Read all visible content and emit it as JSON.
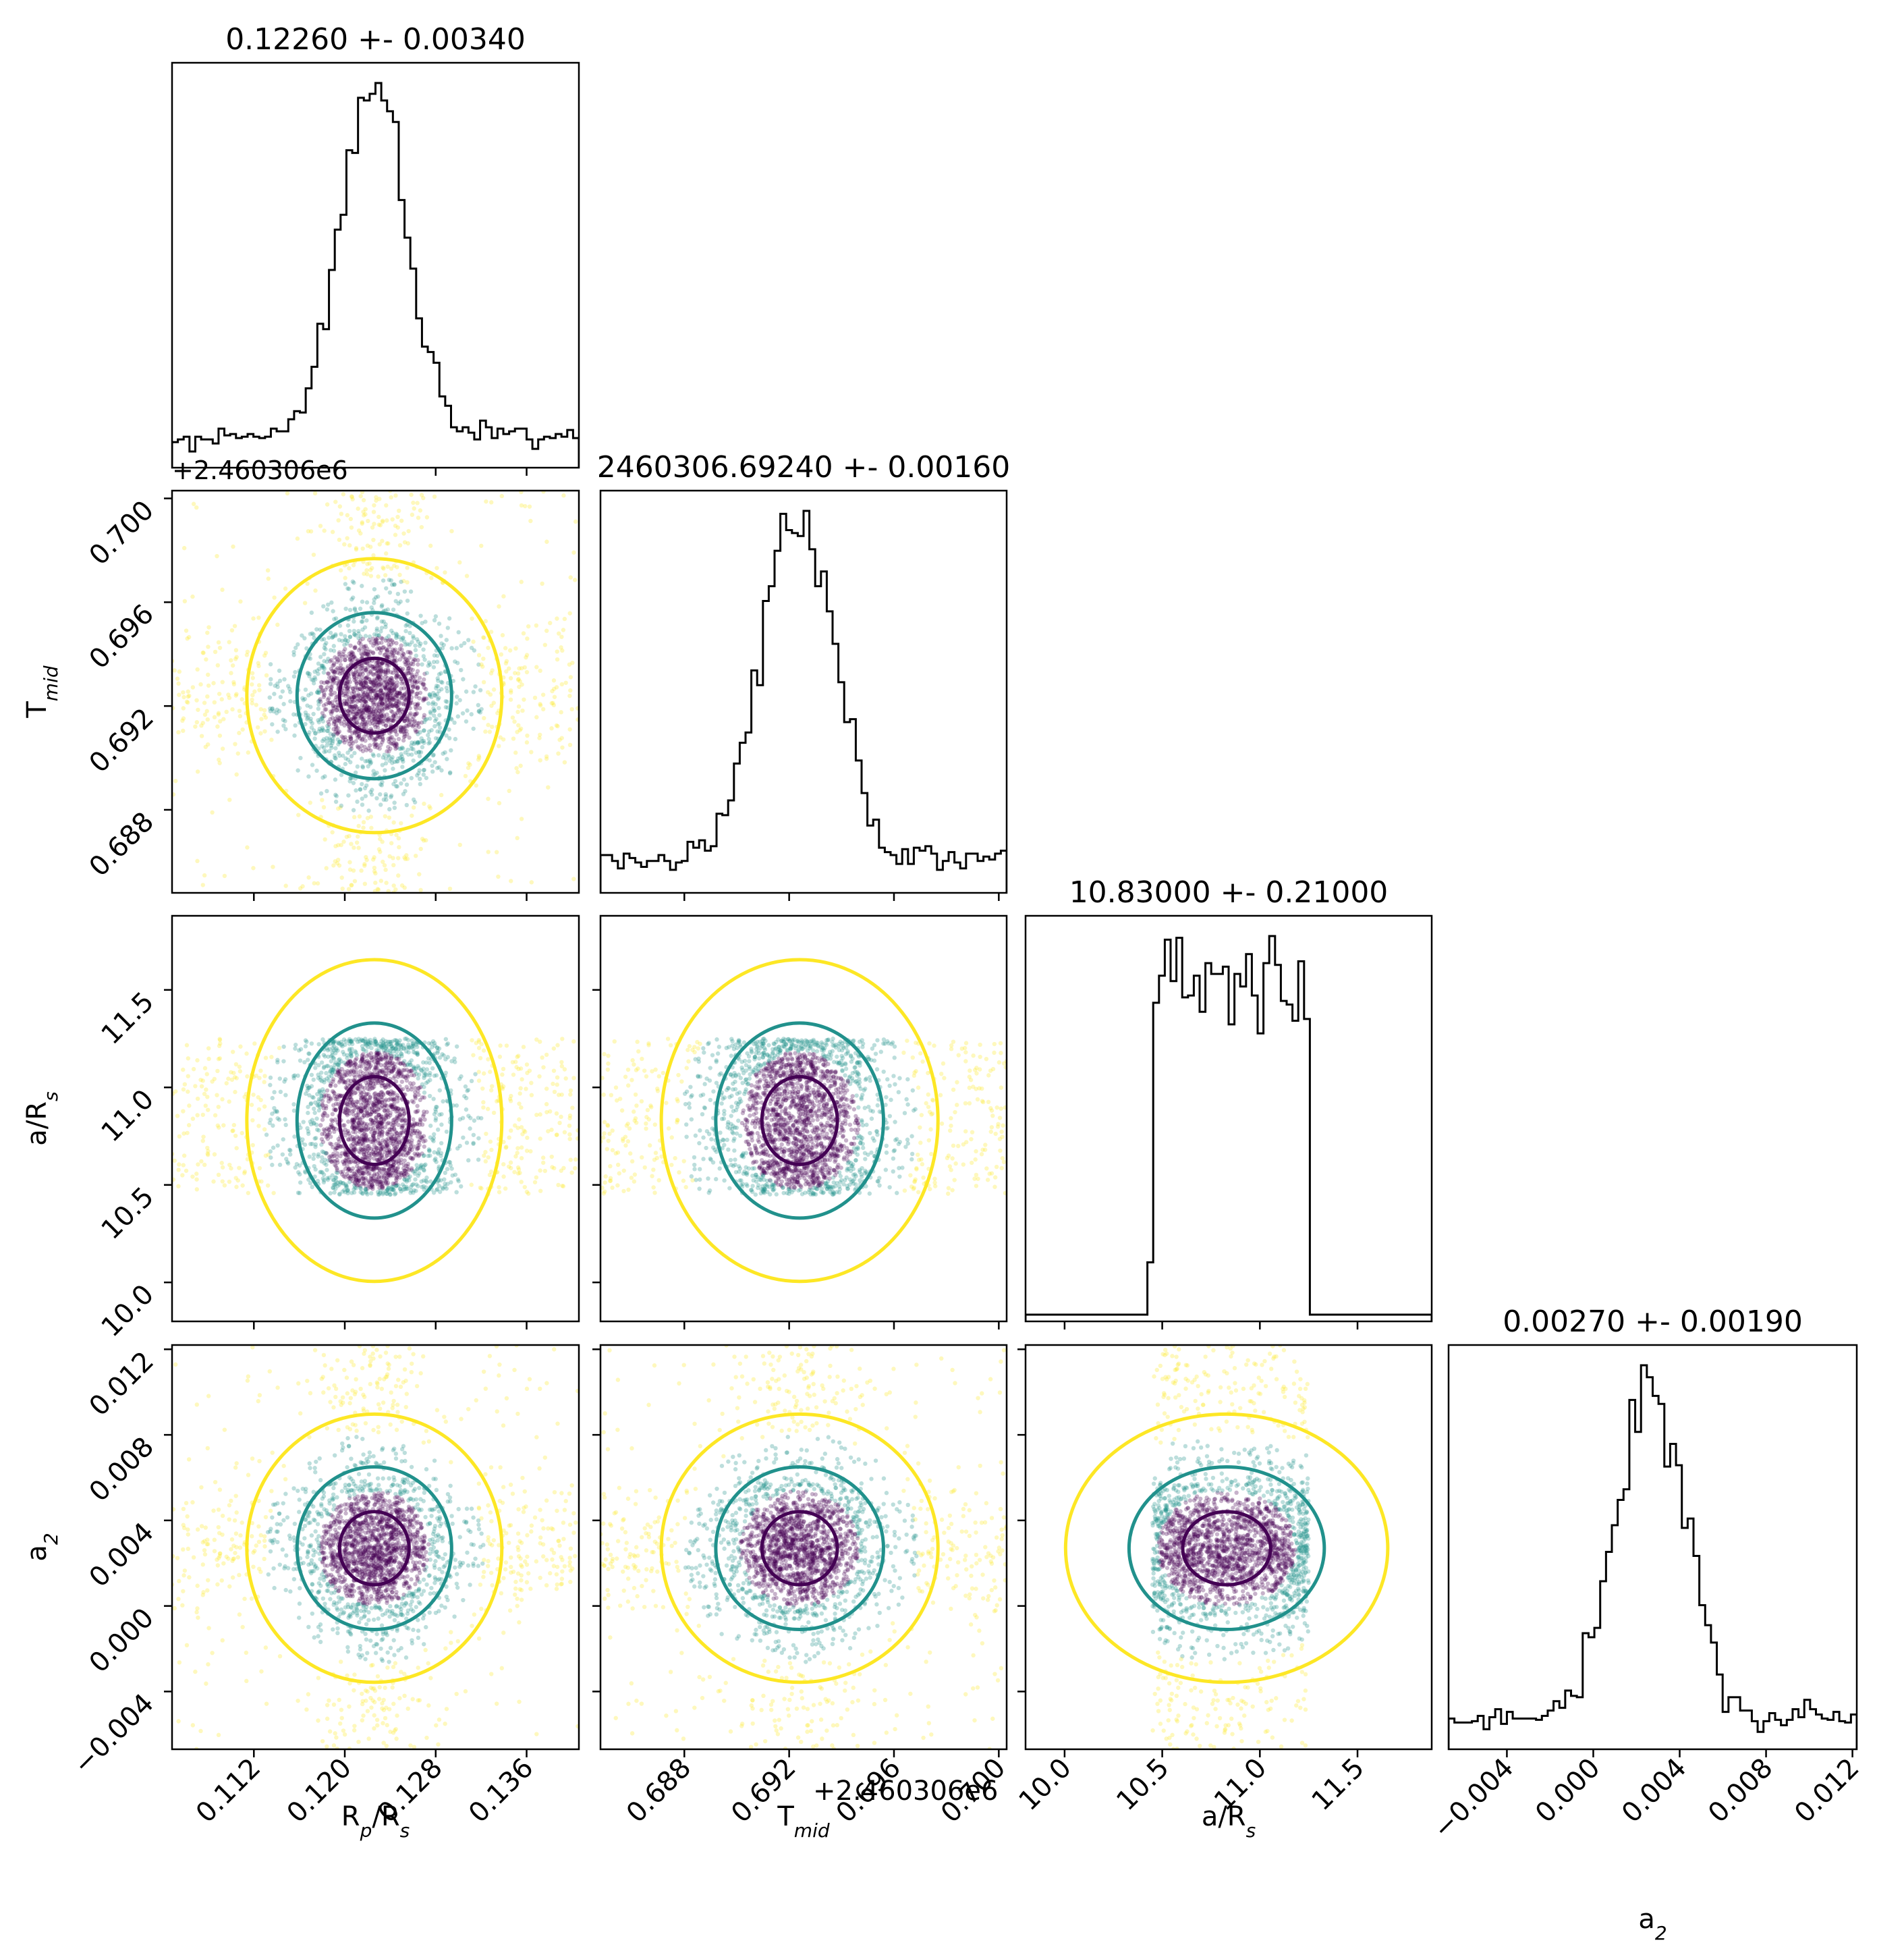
{
  "colors": {
    "level_inner": "#440154",
    "level_mid": "#21918c",
    "level_outer": "#fde725",
    "histogram": "#000000",
    "frame": "#000000"
  },
  "chart_data": {
    "type": "scatter",
    "subtype": "corner-plot",
    "parameters": [
      {
        "name": "R_p/R_s",
        "label_main": "R",
        "label_sub": "p",
        "label_tail": "/R",
        "label_tail_sub": "s",
        "title": "0.12260 +- 0.00340",
        "mean": 0.1226,
        "std": 0.0034,
        "range": [
          0.1048,
          0.1406
        ],
        "ticks": [
          0.112,
          0.12,
          0.128,
          0.136
        ],
        "tick_labels": [
          "0.112",
          "0.120",
          "0.128",
          "0.136"
        ]
      },
      {
        "name": "T_mid",
        "label_main": "T",
        "label_sub": "mid",
        "label_tail": "",
        "label_tail_sub": "",
        "title": "2460306.69240 +- 0.00160",
        "mean": 0.6924,
        "std": 0.0016,
        "range": [
          0.6848,
          0.7003
        ],
        "offset_text": "+2.460306e6",
        "ticks": [
          0.688,
          0.692,
          0.696,
          0.7
        ],
        "tick_labels": [
          "0.688",
          "0.692",
          "0.696",
          "0.700"
        ]
      },
      {
        "name": "a/R_s",
        "label_main": "a/R",
        "label_sub": "s",
        "label_tail": "",
        "label_tail_sub": "",
        "title": "10.83000 +- 0.21000",
        "mean": 10.83,
        "std": 0.21,
        "range": [
          9.8,
          11.88
        ],
        "support": [
          10.45,
          11.25
        ],
        "ticks": [
          10.0,
          10.5,
          11.0,
          11.5
        ],
        "tick_labels": [
          "10.0",
          "10.5",
          "11.0",
          "11.5"
        ]
      },
      {
        "name": "a_2",
        "label_main": "a",
        "label_sub": "2",
        "label_tail": "",
        "label_tail_sub": "",
        "title": "0.00270 +- 0.00190",
        "mean": 0.0027,
        "std": 0.0019,
        "range": [
          -0.0067,
          0.0122
        ],
        "ticks": [
          -0.004,
          0.0,
          0.004,
          0.008,
          0.012
        ],
        "tick_labels": [
          "−0.004",
          "0.000",
          "0.004",
          "0.008",
          "0.012"
        ]
      }
    ],
    "offset_text": "+2.460306e6",
    "contour_levels": [
      "inner",
      "mid",
      "outer"
    ],
    "grid": false,
    "legend": "none"
  }
}
